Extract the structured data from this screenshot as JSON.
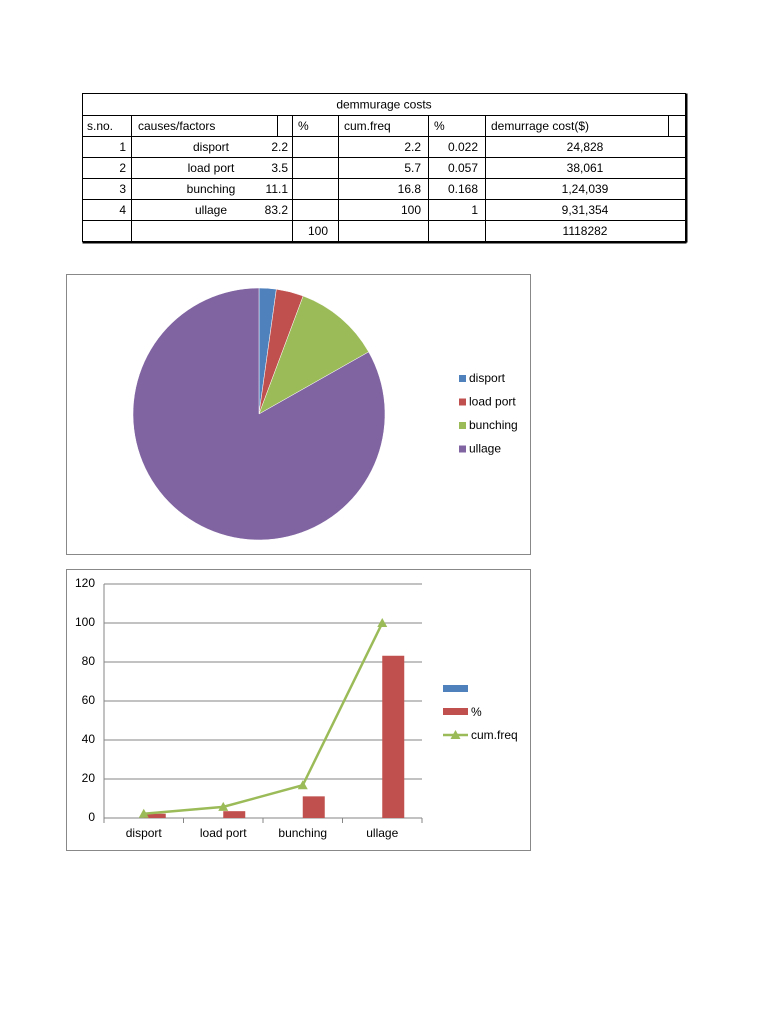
{
  "table": {
    "title": "demmurage costs",
    "header": [
      "s.no.",
      "causes/factors",
      "%",
      "cum.freq",
      "%",
      "demurrage cost($)"
    ],
    "rows": [
      [
        "1",
        "disport",
        "2.2",
        "2.2",
        "0.022",
        "24,828"
      ],
      [
        "2",
        "load port",
        "3.5",
        "5.7",
        "0.057",
        "38,061"
      ],
      [
        "3",
        "bunching",
        "11.1",
        "16.8",
        "0.168",
        "1,24,039"
      ],
      [
        "4",
        "ullage",
        "83.2",
        "100",
        "1",
        "9,31,354"
      ]
    ],
    "totals": {
      "percent": "100",
      "cost": "1118282"
    }
  },
  "chart_data": [
    {
      "type": "pie",
      "categories": [
        "disport",
        "load port",
        "bunching",
        "ullage"
      ],
      "values": [
        2.2,
        3.5,
        11.1,
        83.2
      ],
      "colors": [
        "#4f81bd",
        "#c0504d",
        "#9bbb59",
        "#8064a2"
      ],
      "legend": "right"
    },
    {
      "type": "bar",
      "categories": [
        "disport",
        "load port",
        "bunching",
        "ullage"
      ],
      "series": [
        {
          "name": null,
          "color": "#4f81bd",
          "values": [
            null,
            null,
            null,
            null
          ]
        },
        {
          "name": "%",
          "color": "#c0504d",
          "values": [
            2.2,
            3.5,
            11.1,
            83.2
          ]
        },
        {
          "name": "cum.freq",
          "color": "#9bbb59",
          "type": "line",
          "values": [
            2.2,
            5.7,
            16.8,
            100
          ]
        }
      ],
      "ylim": [
        0,
        120
      ],
      "yticks": [
        0,
        20,
        40,
        60,
        80,
        100,
        120
      ],
      "grid": true,
      "legend": "right"
    }
  ]
}
